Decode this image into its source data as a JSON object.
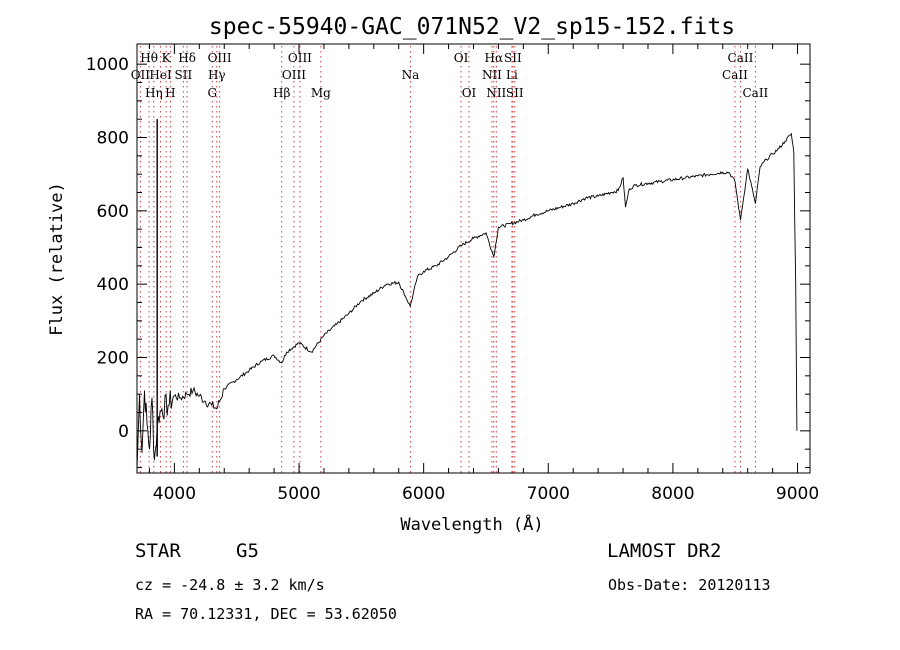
{
  "chart_data": {
    "type": "line",
    "title": "spec-55940-GAC_071N52_V2_sp15-152.fits",
    "xlabel": "Wavelength (Å)",
    "ylabel": "Flux (relative)",
    "xlim": [
      3700,
      9100
    ],
    "ylim": [
      -115,
      1055
    ],
    "xticks": [
      4000,
      5000,
      6000,
      7000,
      8000,
      9000
    ],
    "xtick_labels": [
      "4000",
      "5000",
      "6000",
      "7000",
      "8000",
      "9000"
    ],
    "yticks": [
      0,
      200,
      400,
      600,
      800,
      1000
    ],
    "ytick_labels": [
      "0",
      "200",
      "400",
      "600",
      "800",
      "1000"
    ],
    "grid": false,
    "series": [
      {
        "x": [
          3700,
          3720,
          3740,
          3760,
          3780,
          3800,
          3820,
          3840,
          3870,
          3900,
          3950,
          4000,
          4050,
          4100,
          4150,
          4200,
          4250,
          4300,
          4340,
          4400,
          4500,
          4600,
          4700,
          4800,
          4861,
          4900,
          5000,
          5100,
          5200,
          5300,
          5400,
          5500,
          5600,
          5700,
          5800,
          5892,
          5950,
          6000,
          6100,
          6200,
          6300,
          6400,
          6500,
          6563,
          6600,
          6700,
          6800,
          6900,
          7000,
          7100,
          7200,
          7300,
          7400,
          7500,
          7560,
          7600,
          7620,
          7650,
          7700,
          7800,
          7900,
          8000,
          8100,
          8200,
          8300,
          8400,
          8450,
          8498,
          8542,
          8600,
          8662,
          8700,
          8750,
          8800,
          8850,
          8900,
          8950,
          8970,
          8985,
          8995
        ],
        "y": [
          -110,
          100,
          -60,
          110,
          20,
          -50,
          90,
          -80,
          40,
          60,
          70,
          95,
          90,
          100,
          110,
          95,
          80,
          70,
          60,
          115,
          140,
          165,
          190,
          205,
          185,
          215,
          240,
          215,
          260,
          290,
          320,
          355,
          375,
          400,
          405,
          340,
          420,
          435,
          450,
          475,
          505,
          525,
          540,
          475,
          555,
          565,
          575,
          590,
          600,
          610,
          620,
          635,
          640,
          650,
          655,
          690,
          610,
          660,
          670,
          675,
          680,
          685,
          690,
          695,
          700,
          705,
          705,
          680,
          575,
          715,
          620,
          720,
          740,
          755,
          770,
          790,
          810,
          760,
          400,
          0
        ]
      }
    ],
    "lines": [
      {
        "label": "OII",
        "x": 3727,
        "row": 1
      },
      {
        "label": "Hθ",
        "x": 3797,
        "row": 0
      },
      {
        "label": "Hη",
        "x": 3835,
        "row": 2
      },
      {
        "label": "HeI",
        "x": 3889,
        "row": 1
      },
      {
        "label": "K",
        "x": 3934,
        "row": 0
      },
      {
        "label": "H",
        "x": 3968,
        "row": 2
      },
      {
        "label": "SII",
        "x": 4072,
        "row": 1
      },
      {
        "label": "Hδ",
        "x": 4102,
        "row": 0
      },
      {
        "label": "G",
        "x": 4304,
        "row": 2
      },
      {
        "label": "Hγ",
        "x": 4340,
        "row": 1
      },
      {
        "label": "OIII",
        "x": 4363,
        "row": 0
      },
      {
        "label": "Hβ",
        "x": 4861,
        "row": 2
      },
      {
        "label": "OIII",
        "x": 4959,
        "row": 1
      },
      {
        "label": "OIII",
        "x": 5007,
        "row": 0
      },
      {
        "label": "Mg",
        "x": 5175,
        "row": 2
      },
      {
        "label": "Na",
        "x": 5894,
        "row": 1
      },
      {
        "label": "OI",
        "x": 6300,
        "row": 0
      },
      {
        "label": "OI",
        "x": 6364,
        "row": 2
      },
      {
        "label": "NII",
        "x": 6548,
        "row": 1
      },
      {
        "label": "Hα",
        "x": 6563,
        "row": 0
      },
      {
        "label": "NII",
        "x": 6583,
        "row": 2
      },
      {
        "label": "Li",
        "x": 6708,
        "row": 1
      },
      {
        "label": "SII",
        "x": 6716,
        "row": 0
      },
      {
        "label": "SII",
        "x": 6731,
        "row": 2
      },
      {
        "label": "CaII",
        "x": 8498,
        "row": 1
      },
      {
        "label": "CaII",
        "x": 8542,
        "row": 0
      },
      {
        "label": "CaII",
        "x": 8662,
        "row": 2
      }
    ]
  },
  "info": {
    "classification": "STAR",
    "subclass": "G5",
    "survey": "LAMOST DR2",
    "cz": "cz = -24.8 ± 3.2 km/s",
    "obs_date": "Obs-Date: 20120113",
    "coords": "RA =  70.12331, DEC =  53.62050"
  }
}
